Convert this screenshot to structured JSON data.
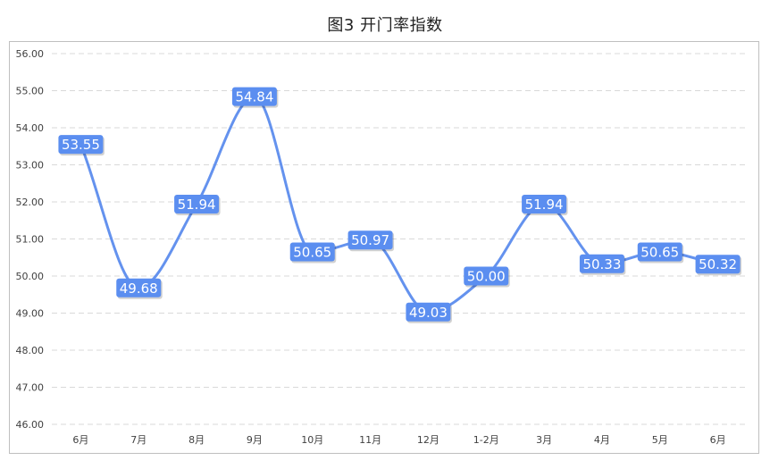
{
  "chart_data": {
    "type": "line",
    "title": "图3 开门率指数",
    "xlabel": "",
    "ylabel": "",
    "categories": [
      "6月",
      "7月",
      "8月",
      "9月",
      "10月",
      "11月",
      "12月",
      "1-2月",
      "3月",
      "4月",
      "5月",
      "6月"
    ],
    "series": [
      {
        "values": [
          53.55,
          49.68,
          51.94,
          54.84,
          50.65,
          50.97,
          49.03,
          50.0,
          51.94,
          50.33,
          50.65,
          50.32
        ],
        "labels": [
          "53.55",
          "49.68",
          "51.94",
          "54.84",
          "50.65",
          "50.97",
          "49.03",
          "50.00",
          "51.94",
          "50.33",
          "50.65",
          "50.32"
        ]
      }
    ],
    "ylim": [
      46,
      56
    ],
    "yticks": [
      "46.00",
      "47.00",
      "48.00",
      "49.00",
      "50.00",
      "51.00",
      "52.00",
      "53.00",
      "54.00",
      "55.00",
      "56.00"
    ],
    "grid": "horizontal-dashed",
    "legend": "none",
    "colors": {
      "line": "#6492ee",
      "label_box": "#5b8ef0",
      "grid": "#d9d9d9"
    }
  }
}
